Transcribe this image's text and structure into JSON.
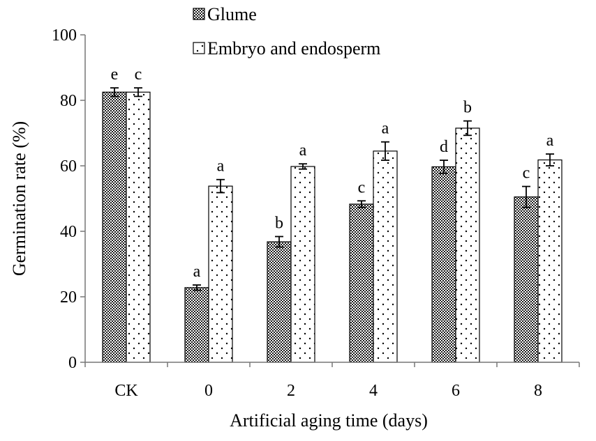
{
  "chart_data": {
    "type": "bar",
    "title": "",
    "xlabel": "Artificial aging time (days)",
    "ylabel": "Germination rate (%)",
    "ylim": [
      0,
      100
    ],
    "yticks": [
      "0",
      "20",
      "40",
      "60",
      "80",
      "100"
    ],
    "categories": [
      "CK",
      "0",
      "2",
      "4",
      "6",
      "8"
    ],
    "grid": false,
    "legend": {
      "position": "top-center",
      "entries": [
        "Glume",
        "Embryo and endosperm"
      ]
    },
    "series": [
      {
        "name": "Glume",
        "pattern": "crosshatch",
        "color": "#000000",
        "values": [
          82.5,
          22.8,
          36.8,
          48.3,
          59.7,
          50.5
        ],
        "errors": [
          1.3,
          0.8,
          1.6,
          1.0,
          2.0,
          3.2
        ],
        "labels": [
          "e",
          "a",
          "b",
          "c",
          "d",
          "c"
        ]
      },
      {
        "name": "Embryo and endosperm",
        "pattern": "dots",
        "color": "#ffffff",
        "values": [
          82.5,
          53.8,
          59.8,
          64.5,
          71.5,
          61.8
        ],
        "errors": [
          1.3,
          2.0,
          0.8,
          2.8,
          2.2,
          1.8
        ],
        "labels": [
          "c",
          "a",
          "a",
          "a",
          "b",
          "a"
        ]
      }
    ]
  }
}
